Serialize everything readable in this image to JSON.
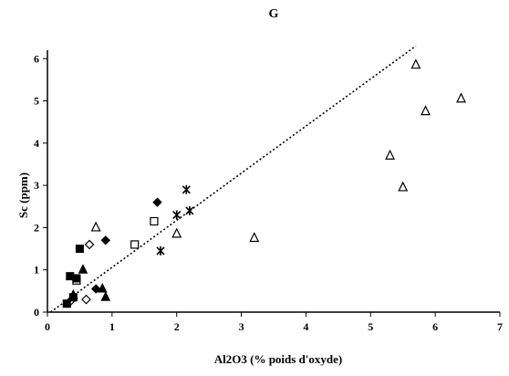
{
  "chart_data": {
    "type": "scatter",
    "title": "G",
    "xlabel": "Al2O3 (% poids d'oxyde)",
    "ylabel": "Sc (ppm)",
    "xlim": [
      0,
      7
    ],
    "ylim": [
      0,
      6.2
    ],
    "xticks": [
      "0",
      "1",
      "2",
      "3",
      "4",
      "5",
      "6",
      "7"
    ],
    "yticks": [
      "0",
      "1",
      "2",
      "3",
      "4",
      "5",
      "6"
    ],
    "grid": false,
    "trendline": {
      "style": "dotted",
      "x": [
        0.05,
        5.7
      ],
      "y": [
        0.0,
        6.3
      ]
    },
    "series": [
      {
        "marker": "triangle-open",
        "points": [
          [
            5.7,
            5.85
          ],
          [
            6.4,
            5.05
          ],
          [
            5.85,
            4.75
          ],
          [
            5.3,
            3.7
          ],
          [
            5.5,
            2.95
          ],
          [
            3.2,
            1.75
          ],
          [
            2.0,
            1.85
          ],
          [
            0.75,
            2.0
          ]
        ]
      },
      {
        "marker": "star",
        "points": [
          [
            2.15,
            2.9
          ],
          [
            2.2,
            2.4
          ],
          [
            2.0,
            2.3
          ],
          [
            1.75,
            1.45
          ]
        ]
      },
      {
        "marker": "square-open",
        "points": [
          [
            1.65,
            2.15
          ],
          [
            1.35,
            1.6
          ],
          [
            0.45,
            0.75
          ]
        ]
      },
      {
        "marker": "diamond-filled",
        "points": [
          [
            1.7,
            2.6
          ],
          [
            0.9,
            1.7
          ],
          [
            0.75,
            0.55
          ]
        ]
      },
      {
        "marker": "diamond-open",
        "points": [
          [
            0.65,
            1.6
          ],
          [
            0.6,
            0.3
          ],
          [
            0.35,
            0.25
          ]
        ]
      },
      {
        "marker": "square-filled",
        "points": [
          [
            0.5,
            1.5
          ],
          [
            0.35,
            0.85
          ],
          [
            0.45,
            0.8
          ],
          [
            0.3,
            0.2
          ],
          [
            0.4,
            0.35
          ]
        ]
      },
      {
        "marker": "triangle-filled",
        "points": [
          [
            0.55,
            1.0
          ],
          [
            0.85,
            0.55
          ],
          [
            0.9,
            0.35
          ],
          [
            0.4,
            0.4
          ]
        ]
      }
    ]
  }
}
